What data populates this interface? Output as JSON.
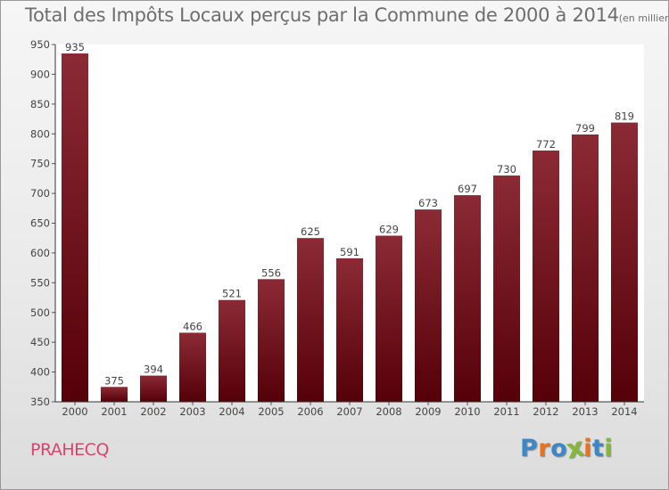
{
  "chart_data": {
    "type": "bar",
    "title": "Total des Impôts Locaux perçus par la Commune de 2000 à 2014",
    "title_unit": "(en milliers d'€)",
    "categories": [
      "2000",
      "2001",
      "2002",
      "2003",
      "2004",
      "2005",
      "2006",
      "2007",
      "2008",
      "2009",
      "2010",
      "2011",
      "2012",
      "2013",
      "2014"
    ],
    "values": [
      935,
      375,
      394,
      466,
      521,
      556,
      625,
      591,
      629,
      673,
      697,
      730,
      772,
      799,
      819
    ],
    "ylim": [
      350,
      950
    ],
    "yticks": [
      350,
      400,
      450,
      500,
      550,
      600,
      650,
      700,
      750,
      800,
      850,
      900,
      950
    ],
    "xlabel": "",
    "ylabel": "",
    "grid": false,
    "bar_color_top": "#8b2a35",
    "bar_color_bottom": "#550008"
  },
  "commune": "PRAHECQ",
  "logo": {
    "text": "Proxiti",
    "letters": [
      {
        "ch": "P",
        "color": "#3b87c9"
      },
      {
        "ch": "r",
        "color": "#e8731c"
      },
      {
        "ch": "o",
        "color": "#3b87c9"
      },
      {
        "ch": "x",
        "color": "#84b83a"
      },
      {
        "ch": "i",
        "color": "#e8731c"
      },
      {
        "ch": "t",
        "color": "#3b87c9"
      },
      {
        "ch": "i",
        "color": "#84b83a"
      }
    ]
  }
}
